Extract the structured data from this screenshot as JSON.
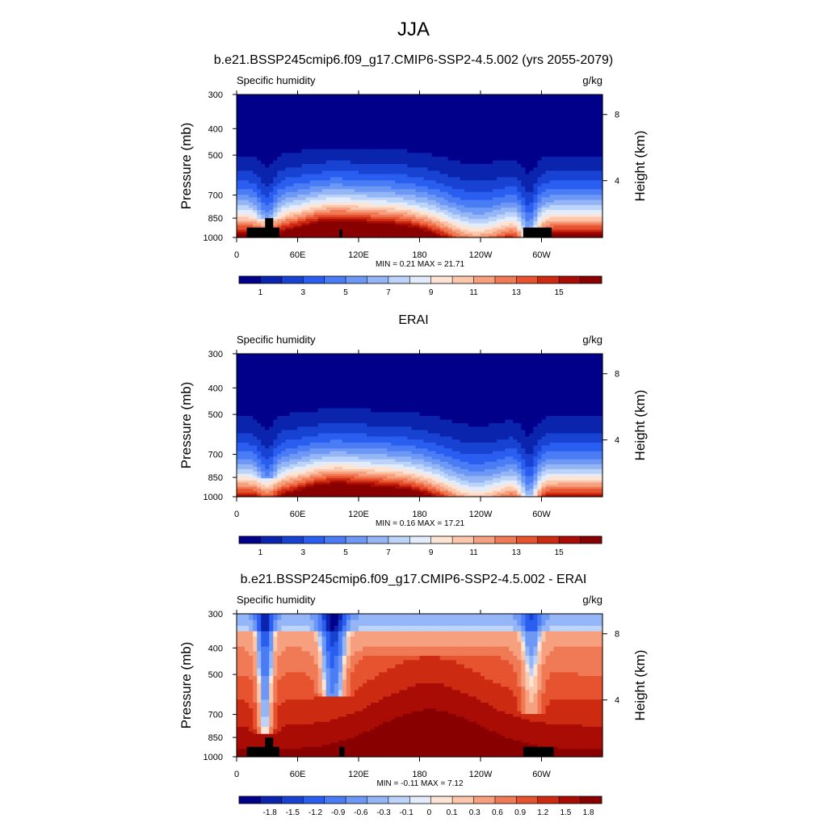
{
  "page_title": "JJA",
  "chart_data": [
    {
      "type": "heatmap",
      "title": "b.e21.BSSP245cmip6.f09_g17.CMIP6-SSP2-4.5.002 (yrs 2055-2079)",
      "field_label": "Specific humidity",
      "units_label": "g/kg",
      "ylabel": "Pressure (mb)",
      "ylabel_right": "Height (km)",
      "x_ticks": [
        "0",
        "60E",
        "120E",
        "180",
        "120W",
        "60W"
      ],
      "x_tick_lon": [
        0,
        60,
        120,
        180,
        240,
        300
      ],
      "xlim": [
        0,
        360
      ],
      "y_ticks": [
        300,
        400,
        500,
        700,
        850,
        1000
      ],
      "ylim": [
        300,
        1000
      ],
      "right_ticks": [
        8,
        4
      ],
      "right_tick_pressure": [
        355,
        620
      ],
      "stats_text": "MIN =   0.21  MAX =  21.71",
      "min": 0.21,
      "max": 21.71,
      "colorbar_labels": [
        "1",
        "3",
        "5",
        "7",
        "9",
        "11",
        "13",
        "15"
      ],
      "colorbar_label_slots": [
        1,
        3,
        5,
        7,
        9,
        11,
        13,
        15
      ],
      "levels": [
        0,
        1,
        2,
        3,
        4,
        5,
        6,
        7,
        8,
        9,
        10,
        11,
        12,
        13,
        14,
        15,
        16
      ],
      "mode": "abs",
      "masks": [
        {
          "lon0": 10,
          "lon1": 42,
          "p": 920
        },
        {
          "lon0": 28,
          "lon1": 36,
          "p": 850
        },
        {
          "lon0": 101,
          "lon1": 104,
          "p": 935
        },
        {
          "lon0": 282,
          "lon1": 310,
          "p": 920
        }
      ]
    },
    {
      "type": "heatmap",
      "title": "ERAI",
      "field_label": "Specific humidity",
      "units_label": "g/kg",
      "ylabel": "Pressure (mb)",
      "ylabel_right": "Height (km)",
      "x_ticks": [
        "0",
        "60E",
        "120E",
        "180",
        "120W",
        "60W"
      ],
      "x_tick_lon": [
        0,
        60,
        120,
        180,
        240,
        300
      ],
      "xlim": [
        0,
        360
      ],
      "y_ticks": [
        300,
        400,
        500,
        700,
        850,
        1000
      ],
      "ylim": [
        300,
        1000
      ],
      "right_ticks": [
        8,
        4
      ],
      "right_tick_pressure": [
        355,
        620
      ],
      "stats_text": "MIN =   0.16  MAX =  17.21",
      "min": 0.16,
      "max": 17.21,
      "colorbar_labels": [
        "1",
        "3",
        "5",
        "7",
        "9",
        "11",
        "13",
        "15"
      ],
      "colorbar_label_slots": [
        1,
        3,
        5,
        7,
        9,
        11,
        13,
        15
      ],
      "levels": [
        0,
        1,
        2,
        3,
        4,
        5,
        6,
        7,
        8,
        9,
        10,
        11,
        12,
        13,
        14,
        15,
        16
      ],
      "mode": "abs",
      "masks": []
    },
    {
      "type": "heatmap",
      "title": "b.e21.BSSP245cmip6.f09_g17.CMIP6-SSP2-4.5.002 - ERAI",
      "field_label": "Specific humidity",
      "units_label": "g/kg",
      "ylabel": "Pressure (mb)",
      "ylabel_right": "Height (km)",
      "x_ticks": [
        "0",
        "60E",
        "120E",
        "180",
        "120W",
        "60W"
      ],
      "x_tick_lon": [
        0,
        60,
        120,
        180,
        240,
        300
      ],
      "xlim": [
        0,
        360
      ],
      "y_ticks": [
        300,
        400,
        500,
        700,
        850,
        1000
      ],
      "ylim": [
        300,
        1000
      ],
      "right_ticks": [
        8,
        4
      ],
      "right_tick_pressure": [
        355,
        620
      ],
      "stats_text": "MIN =  -0.11  MAX =   7.12",
      "min": -0.11,
      "max": 7.12,
      "colorbar_labels": [
        "-1.8",
        "-1.5",
        "-1.2",
        "-0.9",
        "-0.6",
        "-0.3",
        "-0.1",
        "0",
        "0.1",
        "0.3",
        "0.6",
        "0.9",
        "1.2",
        "1.5",
        "1.8"
      ],
      "colorbar_label_slots": [
        1,
        2,
        3,
        4,
        5,
        6,
        7,
        8,
        9,
        10,
        11,
        12,
        13,
        14,
        15
      ],
      "levels": [
        -1.8,
        -1.5,
        -1.2,
        -0.9,
        -0.6,
        -0.3,
        -0.1,
        0,
        0.1,
        0.3,
        0.6,
        0.9,
        1.2,
        1.5,
        1.8
      ],
      "mode": "diff",
      "masks": [
        {
          "lon0": 10,
          "lon1": 42,
          "p": 920
        },
        {
          "lon0": 28,
          "lon1": 36,
          "p": 850
        },
        {
          "lon0": 101,
          "lon1": 106,
          "p": 920
        },
        {
          "lon0": 282,
          "lon1": 312,
          "p": 920
        }
      ]
    }
  ],
  "colors": {
    "palette": [
      "#00008b",
      "#0b24ad",
      "#1843d2",
      "#2a5ef0",
      "#4a7cf5",
      "#6e98f5",
      "#95b6f6",
      "#bcd3fa",
      "#e2ecfb",
      "#fde4d4",
      "#fbc6ab",
      "#f6a07f",
      "#f07a55",
      "#e6532f",
      "#cd2a12",
      "#a80c05",
      "#880000"
    ]
  }
}
